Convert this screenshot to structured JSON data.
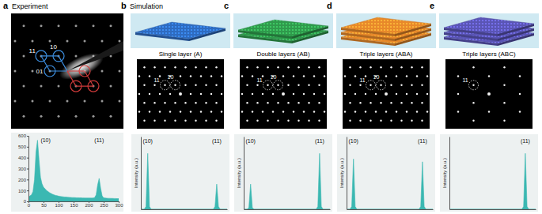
{
  "figure": {
    "panels": [
      {
        "letter": "a",
        "heading": "Experiment",
        "spots": [
          {
            "label": "10",
            "h": 1,
            "k": 0
          },
          {
            "label": "11",
            "h": 1,
            "k": 1
          },
          {
            "label": "01",
            "h": 0,
            "k": 1
          }
        ]
      },
      {
        "letter": "b",
        "heading": "Simulation",
        "title": "Single layer (A)",
        "layers": 1,
        "color": "#2e6bc0",
        "spots": [
          {
            "label": "10",
            "h": 1,
            "k": 0
          },
          {
            "label": "11",
            "h": 1,
            "k": 1
          }
        ]
      },
      {
        "letter": "c",
        "title": "Double layers (AB)",
        "layers": 2,
        "color": "#2f9a4c",
        "spots": [
          {
            "label": "10",
            "h": 1,
            "k": 0
          },
          {
            "label": "11",
            "h": 1,
            "k": 1
          }
        ]
      },
      {
        "letter": "d",
        "title": "Triple layers (ABA)",
        "layers": 3,
        "color": "#e8892a",
        "spots": [
          {
            "label": "10",
            "h": 1,
            "k": 0
          },
          {
            "label": "11",
            "h": 1,
            "k": 1
          }
        ]
      },
      {
        "letter": "e",
        "title": "Triple layers (ABC)",
        "layers": 3,
        "color": "#5a55b5",
        "spots": [
          {
            "label": "11",
            "h": 1,
            "k": 1
          }
        ]
      }
    ]
  },
  "chart_data": [
    {
      "type": "area",
      "x": [
        0,
        5,
        10,
        15,
        20,
        25,
        30,
        35,
        40,
        45,
        50,
        55,
        60,
        65,
        70,
        75,
        80,
        85,
        90,
        95,
        100,
        105,
        110,
        115,
        120,
        125,
        130,
        135,
        140,
        145,
        150,
        155,
        160,
        165,
        170,
        175,
        180,
        185,
        190,
        195,
        200,
        205,
        210,
        215,
        220,
        225,
        230,
        235,
        240,
        245,
        250,
        255,
        260,
        265,
        270,
        275,
        280,
        285,
        290,
        295,
        300
      ],
      "series": [
        {
          "color": "#3bb8b2",
          "values": [
            40,
            50,
            60,
            90,
            200,
            450,
            560,
            380,
            220,
            160,
            130,
            115,
            100,
            90,
            80,
            72,
            65,
            60,
            55,
            52,
            48,
            46,
            44,
            42,
            40,
            39,
            38,
            37,
            36,
            35,
            35,
            34,
            33,
            33,
            32,
            32,
            31,
            31,
            30,
            30,
            30,
            30,
            30,
            31,
            35,
            60,
            150,
            210,
            120,
            50,
            32,
            30,
            29,
            28,
            28,
            27,
            27,
            26,
            26,
            25,
            25
          ]
        }
      ],
      "xlim": [
        0,
        300
      ],
      "ylim": [
        0,
        600
      ],
      "xticks": [
        0,
        50,
        100,
        150,
        200,
        250,
        300
      ],
      "yticks": [
        0,
        100,
        200,
        300,
        400,
        500,
        600
      ],
      "annotations": [
        {
          "text": "(10)",
          "x": 30
        },
        {
          "text": "(11)",
          "x": 235
        }
      ]
    },
    {
      "type": "area",
      "y_label": "Intensity (a.u.)",
      "x": [
        0,
        4,
        6,
        8,
        10,
        12,
        20,
        80,
        84,
        86,
        88,
        90,
        92,
        100
      ],
      "series": [
        {
          "color": "#3bb8b2",
          "values": [
            0,
            0,
            0.05,
            1.0,
            0.05,
            0,
            0,
            0,
            0,
            0.05,
            0.45,
            0.05,
            0,
            0
          ]
        }
      ],
      "xlim": [
        0,
        100
      ],
      "ylim": [
        0,
        1.3
      ],
      "tick_labels": false,
      "annotations": [
        {
          "text": "(10)",
          "x": 8
        },
        {
          "text": "(11)",
          "x": 88
        }
      ]
    },
    {
      "type": "area",
      "y_label": "Intensity (a.u.)",
      "x": [
        0,
        4,
        6,
        8,
        10,
        12,
        20,
        80,
        84,
        86,
        88,
        90,
        92,
        100
      ],
      "series": [
        {
          "color": "#3bb8b2",
          "values": [
            0,
            0,
            0.03,
            0.45,
            0.03,
            0,
            0,
            0,
            0,
            0.05,
            1.0,
            0.05,
            0,
            0
          ]
        }
      ],
      "xlim": [
        0,
        100
      ],
      "ylim": [
        0,
        1.3
      ],
      "tick_labels": false,
      "annotations": [
        {
          "text": "(10)",
          "x": 8
        },
        {
          "text": "(11)",
          "x": 88
        }
      ]
    },
    {
      "type": "area",
      "y_label": "Intensity (a.u.)",
      "x": [
        0,
        4,
        6,
        8,
        10,
        12,
        20,
        80,
        84,
        86,
        88,
        90,
        92,
        100
      ],
      "series": [
        {
          "color": "#3bb8b2",
          "values": [
            0,
            0,
            0.05,
            0.9,
            0.05,
            0,
            0,
            0,
            0,
            0.05,
            0.85,
            0.05,
            0,
            0
          ]
        }
      ],
      "xlim": [
        0,
        100
      ],
      "ylim": [
        0,
        1.3
      ],
      "tick_labels": false,
      "annotations": [
        {
          "text": "(10)",
          "x": 8
        },
        {
          "text": "(11)",
          "x": 88
        }
      ]
    },
    {
      "type": "area",
      "y_label": "Intensity (a.u.)",
      "x": [
        0,
        4,
        6,
        8,
        10,
        12,
        20,
        80,
        84,
        86,
        88,
        90,
        92,
        100
      ],
      "series": [
        {
          "color": "#3bb8b2",
          "values": [
            0,
            0,
            0,
            0,
            0,
            0,
            0,
            0,
            0,
            0.05,
            1.0,
            0.05,
            0,
            0
          ]
        }
      ],
      "xlim": [
        0,
        100
      ],
      "ylim": [
        0,
        1.3
      ],
      "tick_labels": false,
      "annotations": [
        {
          "text": "(11)",
          "x": 88
        }
      ]
    }
  ]
}
